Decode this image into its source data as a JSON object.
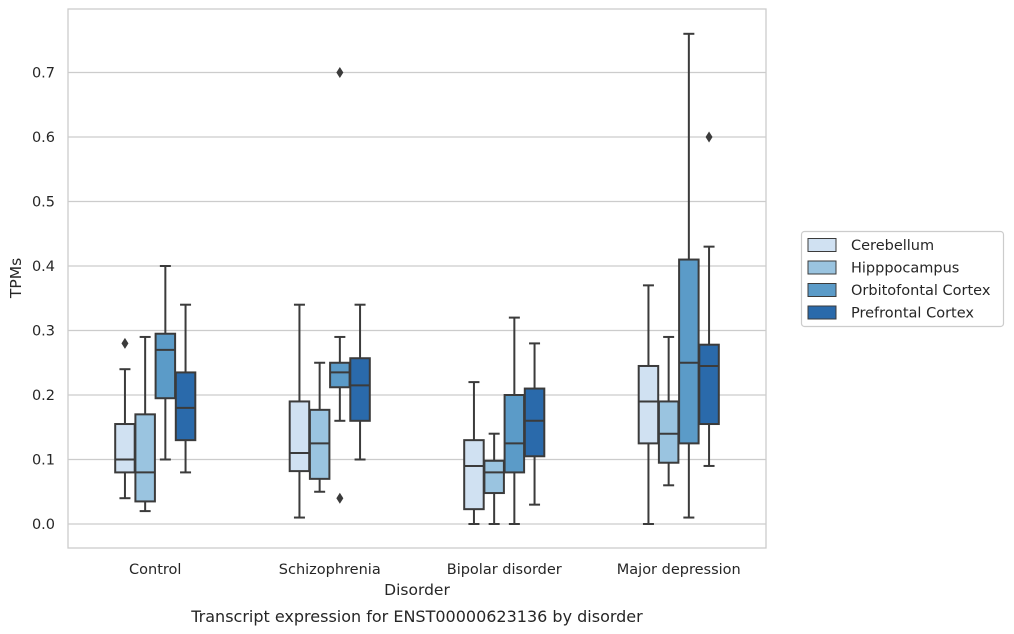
{
  "chart_data": {
    "type": "box",
    "caption": "Transcript expression for ENST00000623136 by disorder",
    "xlabel": "Disorder",
    "ylabel": "TPMs",
    "ylim": [
      -0.036,
      0.8
    ],
    "yticks": [
      0.0,
      0.1,
      0.2,
      0.3,
      0.4,
      0.5,
      0.6,
      0.7
    ],
    "ytick_labels": [
      "0.0",
      "0.1",
      "0.2",
      "0.3",
      "0.4",
      "0.5",
      "0.6",
      "0.7"
    ],
    "grid": "horizontal",
    "legend_position": "right",
    "categories": [
      "Control",
      "Schizophrenia",
      "Bipolar disorder",
      "Major depression"
    ],
    "series": [
      {
        "name": "Cerebellum",
        "color": "#d0e1f2",
        "boxes": [
          {
            "whisker_low": 0.04,
            "q1": 0.08,
            "median": 0.1,
            "q3": 0.155,
            "whisker_high": 0.24,
            "outliers": [
              0.28
            ]
          },
          {
            "whisker_low": 0.01,
            "q1": 0.082,
            "median": 0.11,
            "q3": 0.19,
            "whisker_high": 0.34,
            "outliers": []
          },
          {
            "whisker_low": 0.0,
            "q1": 0.023,
            "median": 0.09,
            "q3": 0.13,
            "whisker_high": 0.22,
            "outliers": []
          },
          {
            "whisker_low": 0.0,
            "q1": 0.125,
            "median": 0.19,
            "q3": 0.245,
            "whisker_high": 0.37,
            "outliers": []
          }
        ]
      },
      {
        "name": "Hipppocampus",
        "color": "#9ac4e0",
        "boxes": [
          {
            "whisker_low": 0.02,
            "q1": 0.035,
            "median": 0.08,
            "q3": 0.17,
            "whisker_high": 0.29,
            "outliers": []
          },
          {
            "whisker_low": 0.05,
            "q1": 0.07,
            "median": 0.125,
            "q3": 0.177,
            "whisker_high": 0.25,
            "outliers": []
          },
          {
            "whisker_low": 0.0,
            "q1": 0.048,
            "median": 0.08,
            "q3": 0.098,
            "whisker_high": 0.14,
            "outliers": []
          },
          {
            "whisker_low": 0.06,
            "q1": 0.095,
            "median": 0.14,
            "q3": 0.19,
            "whisker_high": 0.29,
            "outliers": []
          }
        ]
      },
      {
        "name": "Orbitofontal Cortex",
        "color": "#5b9bc8",
        "boxes": [
          {
            "whisker_low": 0.1,
            "q1": 0.195,
            "median": 0.27,
            "q3": 0.295,
            "whisker_high": 0.4,
            "outliers": []
          },
          {
            "whisker_low": 0.16,
            "q1": 0.212,
            "median": 0.235,
            "q3": 0.25,
            "whisker_high": 0.29,
            "outliers": [
              0.7,
              0.04
            ]
          },
          {
            "whisker_low": 0.0,
            "q1": 0.08,
            "median": 0.125,
            "q3": 0.2,
            "whisker_high": 0.32,
            "outliers": []
          },
          {
            "whisker_low": 0.01,
            "q1": 0.125,
            "median": 0.25,
            "q3": 0.41,
            "whisker_high": 0.76,
            "outliers": []
          }
        ]
      },
      {
        "name": "Prefrontal Cortex",
        "color": "#2a6aab",
        "boxes": [
          {
            "whisker_low": 0.08,
            "q1": 0.13,
            "median": 0.18,
            "q3": 0.235,
            "whisker_high": 0.34,
            "outliers": []
          },
          {
            "whisker_low": 0.1,
            "q1": 0.16,
            "median": 0.215,
            "q3": 0.257,
            "whisker_high": 0.34,
            "outliers": []
          },
          {
            "whisker_low": 0.03,
            "q1": 0.105,
            "median": 0.16,
            "q3": 0.21,
            "whisker_high": 0.28,
            "outliers": []
          },
          {
            "whisker_low": 0.09,
            "q1": 0.155,
            "median": 0.245,
            "q3": 0.278,
            "whisker_high": 0.43,
            "outliers": [
              0.6
            ]
          }
        ]
      }
    ]
  }
}
